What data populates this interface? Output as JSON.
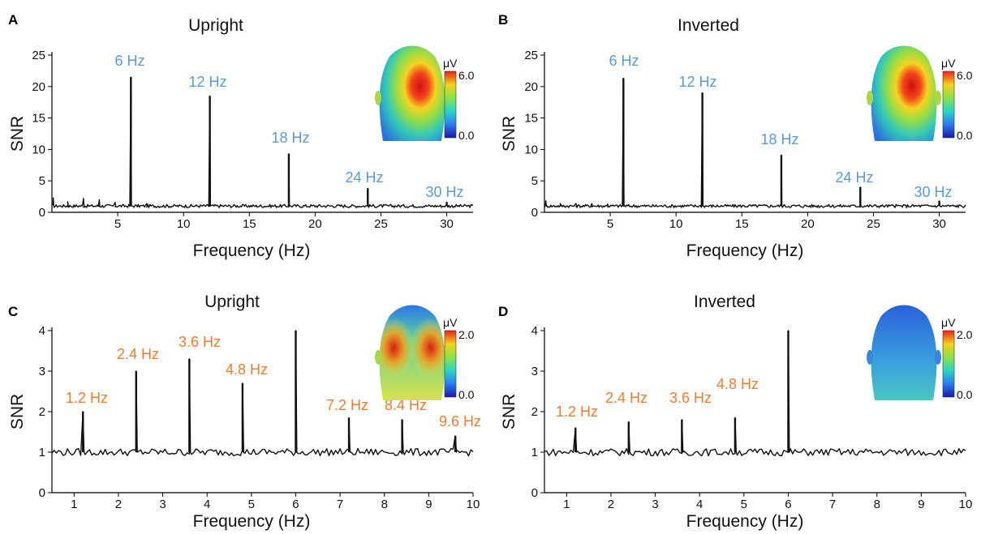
{
  "chart_data": [
    {
      "panel": "A",
      "type": "line",
      "title": "Upright",
      "xlabel": "Frequency (Hz)",
      "ylabel": "SNR",
      "xlim": [
        0,
        32
      ],
      "ylim": [
        0,
        25
      ],
      "xticks": [
        5,
        10,
        15,
        20,
        25,
        30
      ],
      "yticks": [
        0,
        5,
        10,
        15,
        20,
        25
      ],
      "baseline": 1,
      "peaks": [
        {
          "x": 6,
          "y": 21.5,
          "label": "6 Hz"
        },
        {
          "x": 12,
          "y": 18.5,
          "label": "12 Hz"
        },
        {
          "x": 18,
          "y": 9.3,
          "label": "18 Hz"
        },
        {
          "x": 24,
          "y": 3.8,
          "label": "24 Hz"
        },
        {
          "x": 30,
          "y": 1.6,
          "label": "30 Hz"
        }
      ],
      "minor_peaks": [
        {
          "x": 0.1,
          "y": 2.3
        },
        {
          "x": 1.2,
          "y": 1.7
        },
        {
          "x": 2.4,
          "y": 2.2
        },
        {
          "x": 3.6,
          "y": 2.0
        },
        {
          "x": 4.8,
          "y": 1.6
        },
        {
          "x": 7.2,
          "y": 1.4
        }
      ],
      "label_color": "#5b9bd5",
      "colorbar": {
        "unit": "μV",
        "max": "6.0",
        "min": "0.0"
      },
      "topo": "center"
    },
    {
      "panel": "B",
      "type": "line",
      "title": "Inverted",
      "xlabel": "Frequency (Hz)",
      "ylabel": "SNR",
      "xlim": [
        0,
        32
      ],
      "ylim": [
        0,
        25
      ],
      "xticks": [
        5,
        10,
        15,
        20,
        25,
        30
      ],
      "yticks": [
        0,
        5,
        10,
        15,
        20,
        25
      ],
      "baseline": 1,
      "peaks": [
        {
          "x": 6,
          "y": 21.3,
          "label": "6 Hz"
        },
        {
          "x": 12,
          "y": 19.0,
          "label": "12 Hz"
        },
        {
          "x": 18,
          "y": 9.1,
          "label": "18 Hz"
        },
        {
          "x": 24,
          "y": 4.0,
          "label": "24 Hz"
        },
        {
          "x": 30,
          "y": 1.8,
          "label": "30 Hz"
        }
      ],
      "minor_peaks": [
        {
          "x": 0.1,
          "y": 1.8
        },
        {
          "x": 1.2,
          "y": 1.4
        },
        {
          "x": 2.4,
          "y": 1.4
        },
        {
          "x": 3.6,
          "y": 1.4
        },
        {
          "x": 4.8,
          "y": 1.3
        }
      ],
      "label_color": "#5b9bd5",
      "colorbar": {
        "unit": "μV",
        "max": "6.0",
        "min": "0.0"
      },
      "topo": "center"
    },
    {
      "panel": "C",
      "type": "line",
      "title": "Upright",
      "xlabel": "Frequency (Hz)",
      "ylabel": "SNR",
      "xlim": [
        0.5,
        10
      ],
      "ylim": [
        0,
        4
      ],
      "xticks": [
        1,
        2,
        3,
        4,
        5,
        6,
        7,
        8,
        9,
        10
      ],
      "yticks": [
        0,
        1,
        2,
        3,
        4
      ],
      "baseline": 1,
      "peaks": [
        {
          "x": 1.2,
          "y": 2.0,
          "label": "1.2 Hz"
        },
        {
          "x": 2.4,
          "y": 3.0,
          "label": "2.4 Hz"
        },
        {
          "x": 3.6,
          "y": 3.3,
          "label": "3.6 Hz"
        },
        {
          "x": 4.8,
          "y": 2.7,
          "label": "4.8 Hz"
        },
        {
          "x": 6.0,
          "y": 4.0,
          "label": ""
        },
        {
          "x": 7.2,
          "y": 1.85,
          "label": "7.2 Hz"
        },
        {
          "x": 8.4,
          "y": 1.8,
          "label": "8.4 Hz"
        },
        {
          "x": 9.6,
          "y": 1.4,
          "label": "9.6 Hz"
        }
      ],
      "label_color": "#ed7d31",
      "colorbar": {
        "unit": "μV",
        "max": "2.0",
        "min": "0.0"
      },
      "topo": "bilateral"
    },
    {
      "panel": "D",
      "type": "line",
      "title": "Inverted",
      "xlabel": "Frequency (Hz)",
      "ylabel": "SNR",
      "xlim": [
        0.5,
        10
      ],
      "ylim": [
        0,
        4
      ],
      "xticks": [
        1,
        2,
        3,
        4,
        5,
        6,
        7,
        8,
        9,
        10
      ],
      "yticks": [
        0,
        1,
        2,
        3,
        4
      ],
      "baseline": 1,
      "peaks": [
        {
          "x": 1.2,
          "y": 1.6,
          "label": "1.2 Hz"
        },
        {
          "x": 2.4,
          "y": 1.75,
          "label": "2.4 Hz"
        },
        {
          "x": 3.6,
          "y": 1.8,
          "label": "3.6 Hz"
        },
        {
          "x": 4.8,
          "y": 1.85,
          "label": "4.8 Hz"
        },
        {
          "x": 6.0,
          "y": 4.0,
          "label": ""
        }
      ],
      "label_color": "#ed7d31",
      "colorbar": {
        "unit": "μV",
        "max": "2.0",
        "min": "0.0"
      },
      "topo": "flat"
    }
  ]
}
